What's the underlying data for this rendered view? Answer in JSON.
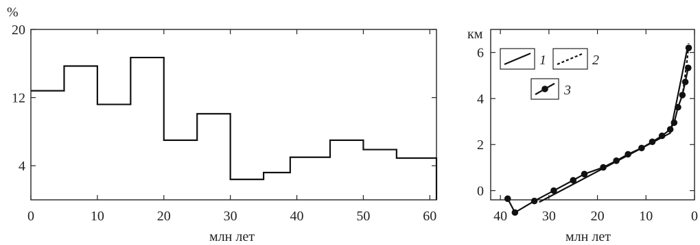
{
  "chart_data": [
    {
      "type": "line",
      "step": true,
      "ylabel": "%",
      "xlabel": "млн лет",
      "xlim": [
        0,
        61
      ],
      "ylim": [
        0,
        20
      ],
      "xticks": [
        0,
        10,
        20,
        30,
        40,
        50,
        60
      ],
      "yticks": [
        4,
        12,
        20
      ],
      "steps": [
        {
          "x0": 0,
          "x1": 5,
          "y": 12.8
        },
        {
          "x0": 5,
          "x1": 10,
          "y": 15.7
        },
        {
          "x0": 10,
          "x1": 15,
          "y": 11.2
        },
        {
          "x0": 15,
          "x1": 20,
          "y": 16.7
        },
        {
          "x0": 20,
          "x1": 25,
          "y": 7
        },
        {
          "x0": 25,
          "x1": 30,
          "y": 10.1
        },
        {
          "x0": 30,
          "x1": 35,
          "y": 2.4
        },
        {
          "x0": 35,
          "x1": 39,
          "y": 3.2
        },
        {
          "x0": 39,
          "x1": 45,
          "y": 5
        },
        {
          "x0": 45,
          "x1": 50,
          "y": 7
        },
        {
          "x0": 50,
          "x1": 55,
          "y": 5.9
        },
        {
          "x0": 55,
          "x1": 61,
          "y": 4.9
        }
      ],
      "drop_to_zero_at_end": true
    },
    {
      "type": "line",
      "ylabel": "км",
      "xlabel": "млн лет",
      "xlim": [
        42,
        0
      ],
      "ylim": [
        -0.4,
        7
      ],
      "xticks": [
        40,
        30,
        20,
        10,
        0
      ],
      "yticks": [
        0,
        2,
        4,
        6
      ],
      "legend": [
        {
          "label": "1",
          "style": "solid"
        },
        {
          "label": "2",
          "style": "dashed"
        },
        {
          "label": "3",
          "style": "marker"
        }
      ],
      "series": [
        {
          "style": "solid",
          "x": [
            32,
            5,
            1.4
          ],
          "y": [
            -0.5,
            2.5,
            6.25
          ]
        },
        {
          "style": "dashed",
          "x": [
            2.5,
            2,
            1.5,
            1.2
          ],
          "y": [
            4.1,
            4.9,
            5.7,
            6.4
          ]
        },
        {
          "style": "marker",
          "x": [
            38.5,
            37,
            33,
            29,
            25,
            22.7,
            18.8,
            16.1,
            13.7,
            10.9,
            8.7,
            6.7,
            5,
            4.2,
            3.4,
            2.5,
            1.9,
            1.3
          ],
          "y": [
            -0.35,
            -0.95,
            -0.45,
            0,
            0.45,
            0.72,
            1.01,
            1.3,
            1.58,
            1.85,
            2.12,
            2.38,
            2.66,
            2.95,
            3.62,
            4.15,
            4.72,
            5.33
          ]
        }
      ],
      "extra_point": {
        "x": 1.2,
        "y": 6.2
      }
    }
  ]
}
